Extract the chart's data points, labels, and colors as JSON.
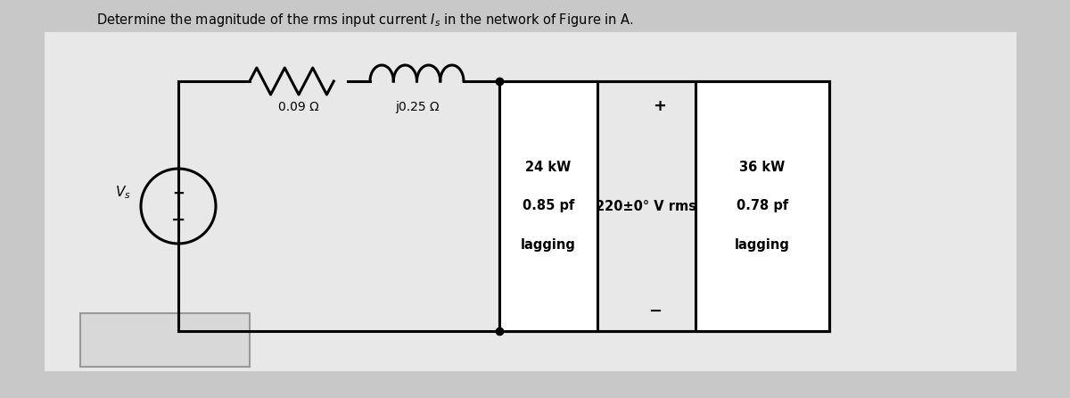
{
  "title": "Determine the magnitude of the rms input current $I_s$ in the network of Figure in A.",
  "title_fontsize": 10.5,
  "bg_color": "#c8c8c8",
  "white_color": "#ffffff",
  "black_color": "#000000",
  "resistor_label": "0.09 Ω",
  "inductor_label": "j0.25 Ω",
  "load1_lines": [
    "24 kW",
    "0.85 pf",
    "lagging"
  ],
  "load2_lines": [
    "36 kW",
    "0.78 pf",
    "lagging"
  ],
  "voltage_label": "220±0° V rms",
  "plus_label": "+",
  "minus_label": "−",
  "vs_label": "$V_s$"
}
